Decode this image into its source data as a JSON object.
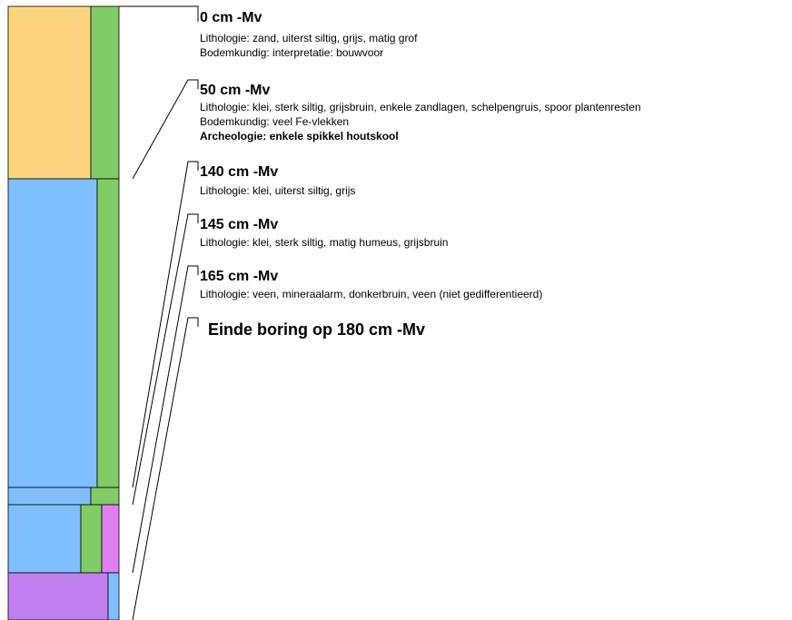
{
  "layers": [
    {
      "depth": "0 cm -Mv",
      "lines": [
        "Lithologie: zand, uiterst siltig, grijs, matig grof",
        "Bodemkundig: interpretatie: bouwvoor"
      ]
    },
    {
      "depth": "50 cm -Mv",
      "lines": [
        "Lithologie: klei, sterk siltig, grijsbruin, enkele zandlagen, schelpengruis, spoor plantenresten",
        "Bodemkundig: veel Fe-vlekken",
        "Archeologie: enkele spikkel houtskool"
      ]
    },
    {
      "depth": "140 cm -Mv",
      "lines": [
        "Lithologie: klei, uiterst siltig, grijs"
      ]
    },
    {
      "depth": "145 cm -Mv",
      "lines": [
        "Lithologie: klei, sterk siltig, matig humeus, grijsbruin"
      ]
    },
    {
      "depth": "165 cm -Mv",
      "lines": [
        "Lithologie: veen, mineraalarm, donkerbruin, veen (niet gedifferentieerd)"
      ]
    }
  ],
  "end": "Einde boring op 180 cm -Mv"
}
